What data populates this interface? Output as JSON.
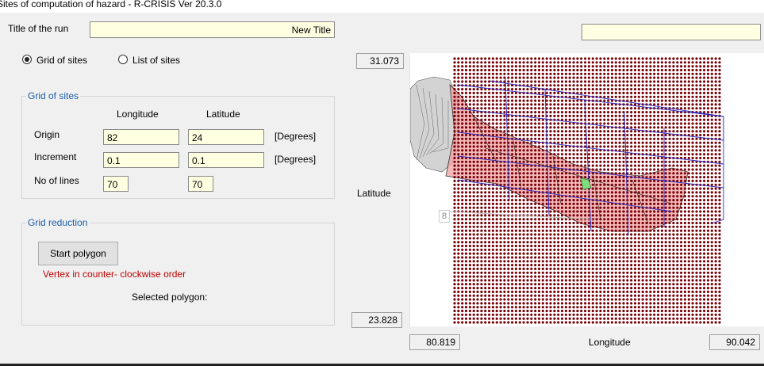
{
  "window": {
    "title": "Sites of computation of hazard - R-CRISIS Ver 20.3.0"
  },
  "run": {
    "label": "Title of the run",
    "value": "New Title",
    "side_value": ""
  },
  "mode": {
    "options": [
      {
        "label": "Grid of sites",
        "selected": true
      },
      {
        "label": "List of sites",
        "selected": false
      }
    ]
  },
  "grid": {
    "legend": "Grid of sites",
    "col_longitude": "Longitude",
    "col_latitude": "Latitude",
    "origin_label": "Origin",
    "origin_lon": "82",
    "origin_lat": "24",
    "increment_label": "Increment",
    "increment_lon": "0.1",
    "increment_lat": "0.1",
    "lines_label": "No of lines",
    "lines_lon": "70",
    "lines_lat": "70",
    "unit": "[Degrees]"
  },
  "reduction": {
    "legend": "Grid reduction",
    "button_label": "Start polygon",
    "note": "Vertex in counter- clockwise order",
    "selected_label": "Selected polygon:"
  },
  "map": {
    "lat_max": "31.073",
    "lat_min": "23.828",
    "lon_min": "80.819",
    "lon_max": "90.042",
    "lat_axis_label": "Latitude",
    "lon_axis_label": "Longitude",
    "overlay_text": "8",
    "colors": {
      "grid_dot": "#7a0008",
      "region_fill": "#f0a0a0",
      "boundary": "#2a2ac0",
      "neighbor_fill": "#d3d3d3",
      "highlight": "#7fdc7f"
    }
  }
}
